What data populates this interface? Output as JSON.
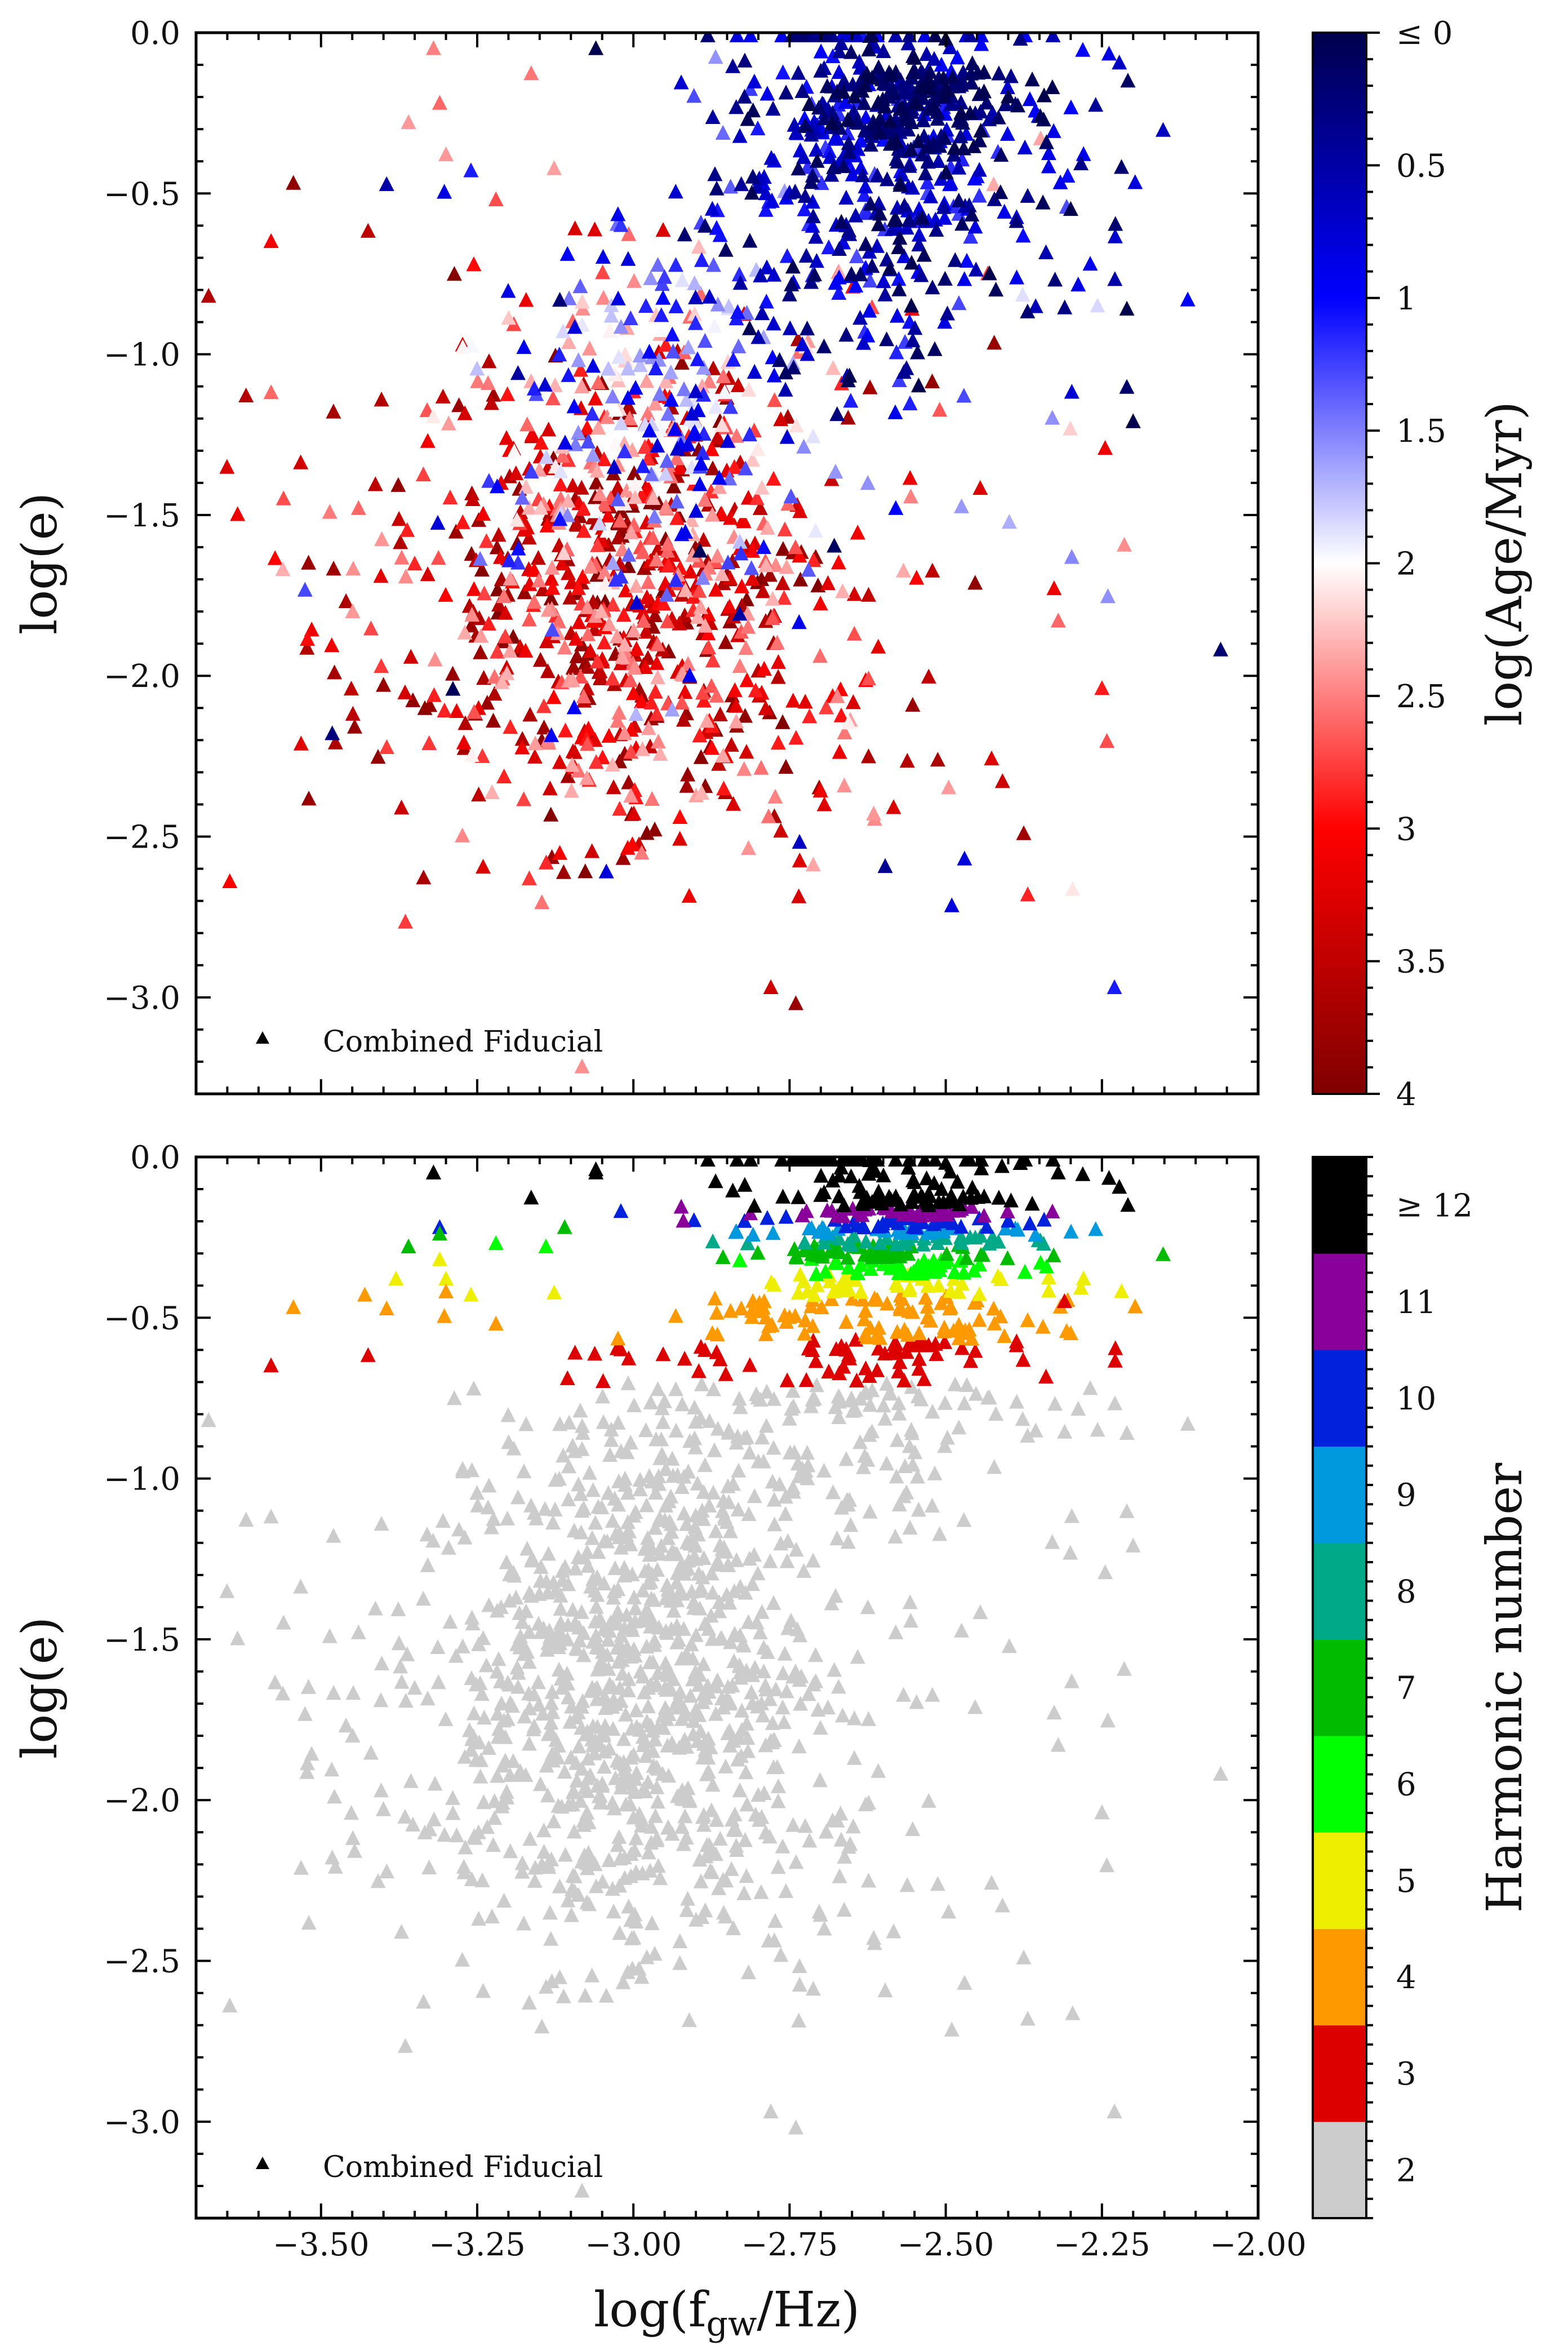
{
  "chart_data": [
    {
      "type": "scatter",
      "panel": "top",
      "ylabel": "log(e)",
      "xlim": [
        -3.7,
        -2.0
      ],
      "ylim": [
        -3.3,
        0.0
      ],
      "yticks": [
        0.0,
        -0.5,
        -1.0,
        -1.5,
        -2.0,
        -2.5,
        -3.0
      ],
      "ytick_labels": [
        "0.0",
        "−0.5",
        "−1.0",
        "−1.5",
        "−2.0",
        "−2.5",
        "−3.0"
      ],
      "legend": {
        "label": "Combined Fiducial",
        "marker": "triangle",
        "location": "lower-left"
      },
      "colorbar": {
        "label": "log(Age/Myr)",
        "range": [
          0,
          4
        ],
        "colormap": "seismic-reversed",
        "ticks": [
          0,
          0.5,
          1,
          1.5,
          2,
          2.5,
          3,
          3.5,
          4
        ],
        "tick_labels": [
          "≤ 0",
          "0.5",
          "1",
          "1.5",
          "2",
          "2.5",
          "3",
          "3.5",
          "4"
        ],
        "stops": [
          "#00004c",
          "#0000ff",
          "#ffffff",
          "#ff0000",
          "#800000"
        ]
      },
      "color_by": "age",
      "population": "about 1700 points; old systems (red, log age 2.5–4) cluster around log f = −3.0, log e = −1.8; young systems (blue, log age 0–1.5) cluster toward log f = −2.6, log e = −0.4; darkest blue points extend to log e = 0 near log f = −2.5",
      "points": [
        {
          "x": -3.68,
          "y": -0.82,
          "age": 3.6
        },
        {
          "x": -3.62,
          "y": -1.13,
          "age": 3.6
        },
        {
          "x": -3.58,
          "y": -0.65,
          "age": 3.1
        },
        {
          "x": -3.58,
          "y": -1.12,
          "age": 2.6
        },
        {
          "x": -3.56,
          "y": -1.45,
          "age": 2.7
        },
        {
          "x": -3.52,
          "y": -1.65,
          "age": 3.8
        },
        {
          "x": -3.48,
          "y": -1.18,
          "age": 3.7
        },
        {
          "x": -3.44,
          "y": -1.48,
          "age": 2.6
        },
        {
          "x": -3.4,
          "y": -2.03,
          "age": 3.8
        },
        {
          "x": -3.36,
          "y": -0.28,
          "age": 2.4
        },
        {
          "x": -3.32,
          "y": -0.05,
          "age": 2.5
        },
        {
          "x": -3.31,
          "y": -0.22,
          "age": 2.6
        },
        {
          "x": -3.3,
          "y": -0.38,
          "age": 2.4
        },
        {
          "x": -3.26,
          "y": -0.43,
          "age": 1.1
        },
        {
          "x": -3.22,
          "y": -0.52,
          "age": 2.7
        },
        {
          "x": -3.17,
          "y": -1.22,
          "age": 2.6
        },
        {
          "x": -3.06,
          "y": -0.05,
          "age": 0.0
        },
        {
          "x": -3.02,
          "y": -0.6,
          "age": 1.2
        },
        {
          "x": -2.97,
          "y": -1.3,
          "age": 3.1
        },
        {
          "x": -2.91,
          "y": -2.0,
          "age": 0.9
        },
        {
          "x": -2.84,
          "y": -2.4,
          "age": 3.3
        },
        {
          "x": -2.78,
          "y": -2.97,
          "age": 3.4
        },
        {
          "x": -2.74,
          "y": -3.02,
          "age": 3.8
        },
        {
          "x": -2.7,
          "y": -0.12,
          "age": 0.3
        },
        {
          "x": -2.62,
          "y": -0.35,
          "age": 0.2
        },
        {
          "x": -2.58,
          "y": -1.48,
          "age": 1.0
        },
        {
          "x": -2.55,
          "y": -0.08,
          "age": 0.0
        },
        {
          "x": -2.5,
          "y": -0.02,
          "age": 0.0
        },
        {
          "x": -2.47,
          "y": -2.57,
          "age": 0.8
        },
        {
          "x": -2.43,
          "y": -0.75,
          "age": 0.0
        },
        {
          "x": -2.4,
          "y": -0.2,
          "age": 0.0
        },
        {
          "x": -2.32,
          "y": -1.83,
          "age": 2.6
        },
        {
          "x": -2.3,
          "y": -0.55,
          "age": 0.0
        },
        {
          "x": -2.25,
          "y": -2.04,
          "age": 2.9
        },
        {
          "x": -2.23,
          "y": -2.97,
          "age": 1.1
        },
        {
          "x": -2.21,
          "y": -0.86,
          "age": 0.0
        },
        {
          "x": -2.2,
          "y": -1.21,
          "age": 0.0
        },
        {
          "x": -2.06,
          "y": -1.92,
          "age": 0.2
        }
      ]
    },
    {
      "type": "scatter",
      "panel": "bottom",
      "xlabel": "log(f_gw/Hz)",
      "xlabel_main": "log(f",
      "xlabel_sub": "gw",
      "xlabel_tail": "/Hz)",
      "ylabel": "log(e)",
      "xlim": [
        -3.7,
        -2.0
      ],
      "ylim": [
        -3.3,
        0.0
      ],
      "xticks": [
        -3.5,
        -3.25,
        -3.0,
        -2.75,
        -2.5,
        -2.25,
        -2.0
      ],
      "xtick_labels": [
        "−3.50",
        "−3.25",
        "−3.00",
        "−2.75",
        "−2.50",
        "−2.25",
        "−2.00"
      ],
      "yticks": [
        0.0,
        -0.5,
        -1.0,
        -1.5,
        -2.0,
        -2.5,
        -3.0
      ],
      "ytick_labels": [
        "0.0",
        "−0.5",
        "−1.0",
        "−1.5",
        "−2.0",
        "−2.5",
        "−3.0"
      ],
      "legend": {
        "label": "Combined Fiducial",
        "marker": "triangle",
        "location": "lower-left"
      },
      "colorbar": {
        "label": "Harmonic number",
        "type": "discrete",
        "levels": [
          2,
          3,
          4,
          5,
          6,
          7,
          8,
          9,
          10,
          11,
          12
        ],
        "tick_labels": [
          "2",
          "3",
          "4",
          "5",
          "6",
          "7",
          "8",
          "9",
          "10",
          "11",
          "≥ 12"
        ],
        "colors": [
          "#cccccc",
          "#dd0000",
          "#ff9900",
          "#eeee00",
          "#00ff00",
          "#00bb00",
          "#00aa88",
          "#0099dd",
          "#0022dd",
          "#880099",
          "#000000"
        ]
      },
      "color_by": "harmonic",
      "population": "same systems as top panel; harmonic number rises with eccentricity: grey (2) below log e = −0.7, red (3) band near −0.75, orange (4) near −0.5, yellow/green (5–8) near −0.35, black (>= 12) near log e = 0 at log f = −2.6",
      "points": [
        {
          "x": -3.68,
          "y": -0.82,
          "h": 2
        },
        {
          "x": -3.62,
          "y": -1.13,
          "h": 2
        },
        {
          "x": -3.58,
          "y": -0.65,
          "h": 3
        },
        {
          "x": -3.52,
          "y": -1.65,
          "h": 2
        },
        {
          "x": -3.43,
          "y": -0.43,
          "h": 4
        },
        {
          "x": -3.4,
          "y": -2.03,
          "h": 2
        },
        {
          "x": -3.38,
          "y": -0.38,
          "h": 5
        },
        {
          "x": -3.32,
          "y": -0.05,
          "h": 12
        },
        {
          "x": -3.31,
          "y": -0.24,
          "h": 7
        },
        {
          "x": -3.31,
          "y": -0.32,
          "h": 5
        },
        {
          "x": -3.3,
          "y": -0.42,
          "h": 4
        },
        {
          "x": -3.22,
          "y": -0.27,
          "h": 6
        },
        {
          "x": -3.14,
          "y": -0.28,
          "h": 6
        },
        {
          "x": -3.11,
          "y": -0.22,
          "h": 7
        },
        {
          "x": -3.06,
          "y": -0.04,
          "h": 12
        },
        {
          "x": -3.02,
          "y": -0.17,
          "h": 10
        },
        {
          "x": -2.92,
          "y": -0.2,
          "h": 11
        },
        {
          "x": -2.84,
          "y": -2.4,
          "h": 2
        },
        {
          "x": -2.78,
          "y": -2.97,
          "h": 2
        },
        {
          "x": -2.74,
          "y": -3.02,
          "h": 2
        },
        {
          "x": -2.47,
          "y": -2.57,
          "h": 2
        },
        {
          "x": -2.41,
          "y": -0.03,
          "h": 12
        },
        {
          "x": -2.32,
          "y": -0.05,
          "h": 12
        },
        {
          "x": -2.31,
          "y": -0.45,
          "h": 3
        },
        {
          "x": -2.25,
          "y": -2.04,
          "h": 2
        },
        {
          "x": -2.23,
          "y": -2.97,
          "h": 2
        },
        {
          "x": -2.06,
          "y": -1.92,
          "h": 2
        }
      ]
    }
  ]
}
